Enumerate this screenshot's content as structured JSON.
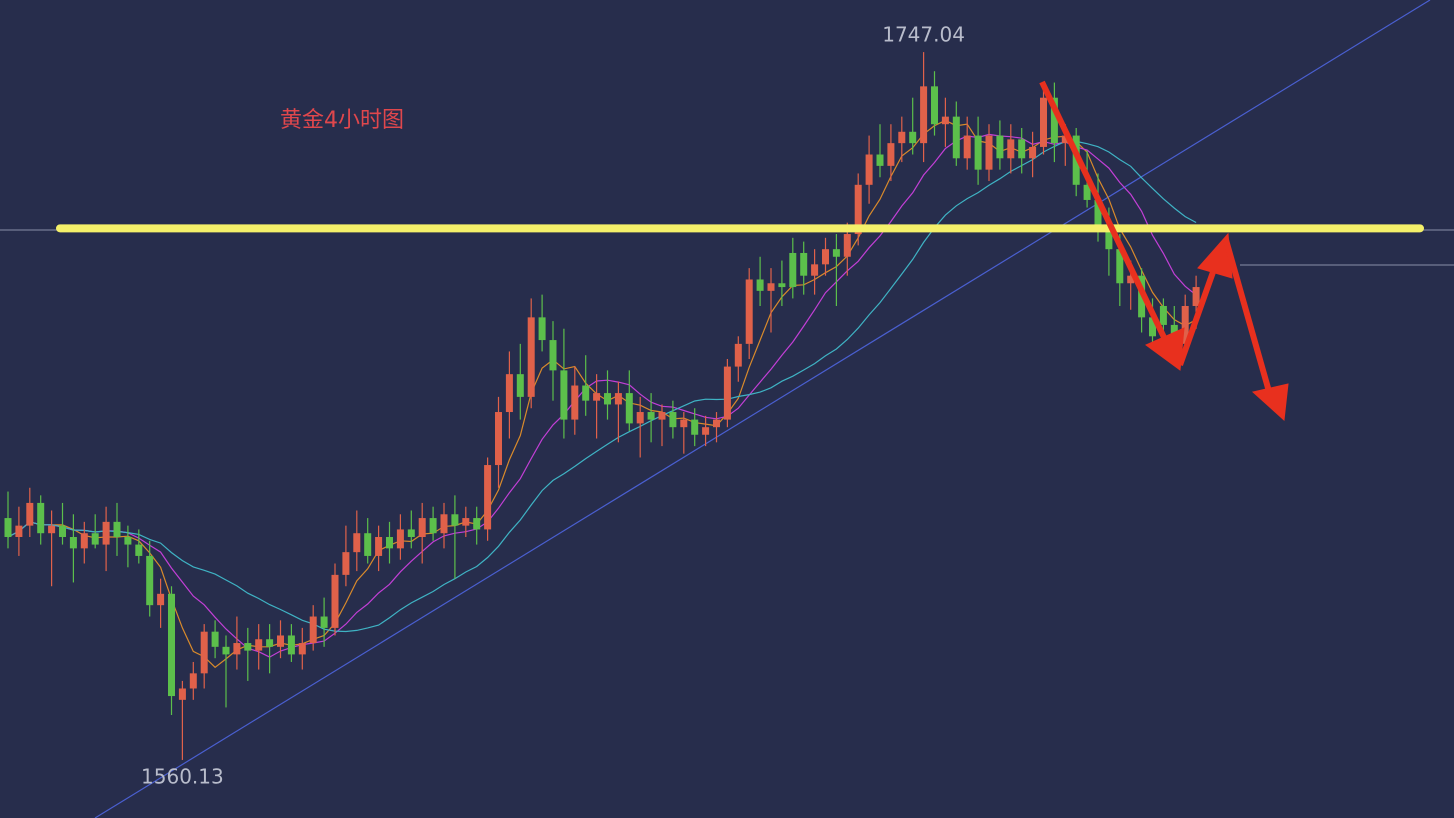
{
  "chart_data": {
    "type": "candlestick",
    "title": "黄金4小时图",
    "ylim": [
      1544.8,
      1760.8
    ],
    "up_color": "#e0614a",
    "down_color": "#5cbf4b",
    "hline": {
      "value": 1700.5,
      "color": "#f4f06a"
    },
    "moving_averages": [
      {
        "period": 5,
        "color": "#d98a2b"
      },
      {
        "period": 10,
        "color": "#c23fd6"
      },
      {
        "period": 20,
        "color": "#3fb3c4"
      }
    ],
    "high_index": 84,
    "low_index": 16,
    "candles": [
      [
        1624,
        1631,
        1616,
        1619
      ],
      [
        1619,
        1627,
        1614,
        1622
      ],
      [
        1622,
        1632,
        1619,
        1628
      ],
      [
        1628,
        1630,
        1617,
        1620
      ],
      [
        1620,
        1626,
        1606,
        1622
      ],
      [
        1622,
        1628,
        1617,
        1619
      ],
      [
        1619,
        1625,
        1607,
        1616
      ],
      [
        1616,
        1623,
        1612,
        1620
      ],
      [
        1620,
        1625,
        1616,
        1617
      ],
      [
        1617,
        1627,
        1610,
        1623
      ],
      [
        1623,
        1628,
        1614,
        1619
      ],
      [
        1619,
        1622,
        1611,
        1617
      ],
      [
        1617,
        1621,
        1612,
        1614
      ],
      [
        1614,
        1618,
        1598,
        1601
      ],
      [
        1601,
        1608,
        1595,
        1604
      ],
      [
        1604,
        1606,
        1572,
        1577
      ],
      [
        1576,
        1581,
        1560.13,
        1579
      ],
      [
        1579,
        1586,
        1576,
        1583
      ],
      [
        1583,
        1596,
        1579,
        1594
      ],
      [
        1594,
        1597,
        1587,
        1590
      ],
      [
        1590,
        1593,
        1574,
        1588
      ],
      [
        1588,
        1598,
        1584,
        1591
      ],
      [
        1591,
        1595,
        1581,
        1589
      ],
      [
        1589,
        1596,
        1584,
        1592
      ],
      [
        1592,
        1596,
        1583,
        1590
      ],
      [
        1590,
        1597,
        1587,
        1593
      ],
      [
        1593,
        1596,
        1586,
        1588
      ],
      [
        1588,
        1595,
        1584,
        1591
      ],
      [
        1591,
        1601,
        1589,
        1598
      ],
      [
        1598,
        1603,
        1590,
        1595
      ],
      [
        1595,
        1612,
        1593,
        1609
      ],
      [
        1609,
        1622,
        1606,
        1615
      ],
      [
        1615,
        1626,
        1610,
        1620
      ],
      [
        1620,
        1624,
        1612,
        1614
      ],
      [
        1614,
        1622,
        1610,
        1619
      ],
      [
        1619,
        1623,
        1612,
        1616
      ],
      [
        1616,
        1625,
        1613,
        1621
      ],
      [
        1621,
        1626,
        1616,
        1619
      ],
      [
        1619,
        1628,
        1612,
        1624
      ],
      [
        1624,
        1627,
        1618,
        1620
      ],
      [
        1620,
        1628,
        1616,
        1625
      ],
      [
        1625,
        1630,
        1608,
        1622
      ],
      [
        1622,
        1627,
        1619,
        1624
      ],
      [
        1624,
        1627,
        1617,
        1621
      ],
      [
        1621,
        1640,
        1618,
        1638
      ],
      [
        1638,
        1656,
        1632,
        1652
      ],
      [
        1652,
        1668,
        1645,
        1662
      ],
      [
        1662,
        1670,
        1650,
        1656
      ],
      [
        1656,
        1682,
        1653,
        1677
      ],
      [
        1677,
        1683,
        1668,
        1671
      ],
      [
        1671,
        1676,
        1655,
        1663
      ],
      [
        1663,
        1674,
        1645,
        1650
      ],
      [
        1650,
        1664,
        1646,
        1659
      ],
      [
        1659,
        1667,
        1651,
        1655
      ],
      [
        1655,
        1662,
        1645,
        1657
      ],
      [
        1657,
        1663,
        1650,
        1654
      ],
      [
        1654,
        1660,
        1644,
        1657
      ],
      [
        1657,
        1663,
        1647,
        1649
      ],
      [
        1649,
        1656,
        1640,
        1652
      ],
      [
        1652,
        1657,
        1644,
        1650
      ],
      [
        1650,
        1654,
        1643,
        1652
      ],
      [
        1652,
        1655,
        1645,
        1648
      ],
      [
        1648,
        1652,
        1641,
        1650
      ],
      [
        1650,
        1653,
        1643,
        1646
      ],
      [
        1646,
        1651,
        1643,
        1648
      ],
      [
        1648,
        1652,
        1644,
        1650
      ],
      [
        1650,
        1666,
        1648,
        1664
      ],
      [
        1664,
        1672,
        1660,
        1670
      ],
      [
        1670,
        1690,
        1666,
        1687
      ],
      [
        1687,
        1693,
        1680,
        1684
      ],
      [
        1684,
        1690,
        1673,
        1686
      ],
      [
        1686,
        1692,
        1680,
        1685
      ],
      [
        1694,
        1698,
        1682,
        1685
      ],
      [
        1694,
        1697,
        1683,
        1688
      ],
      [
        1688,
        1695,
        1683,
        1691
      ],
      [
        1691,
        1698,
        1688,
        1695
      ],
      [
        1695,
        1699,
        1680,
        1693
      ],
      [
        1693,
        1702,
        1688,
        1699
      ],
      [
        1699,
        1715,
        1696,
        1712
      ],
      [
        1712,
        1725,
        1707,
        1720
      ],
      [
        1720,
        1728,
        1714,
        1717
      ],
      [
        1717,
        1728,
        1713,
        1723
      ],
      [
        1723,
        1730,
        1718,
        1726
      ],
      [
        1726,
        1735,
        1720,
        1723
      ],
      [
        1723,
        1747.04,
        1718,
        1738
      ],
      [
        1738,
        1742,
        1725,
        1728
      ],
      [
        1728,
        1735,
        1722,
        1730
      ],
      [
        1730,
        1734,
        1717,
        1719
      ],
      [
        1719,
        1730,
        1716,
        1725
      ],
      [
        1725,
        1730,
        1712,
        1716
      ],
      [
        1716,
        1728,
        1713,
        1725
      ],
      [
        1725,
        1729,
        1716,
        1719
      ],
      [
        1719,
        1728,
        1715,
        1724
      ],
      [
        1724,
        1727,
        1715,
        1719
      ],
      [
        1719,
        1726,
        1714,
        1722
      ],
      [
        1722,
        1737,
        1720,
        1735
      ],
      [
        1735,
        1739,
        1718,
        1723
      ],
      [
        1723,
        1728,
        1717,
        1725
      ],
      [
        1725,
        1727,
        1709,
        1712
      ],
      [
        1712,
        1721,
        1706,
        1708
      ],
      [
        1708,
        1715,
        1697,
        1701
      ],
      [
        1701,
        1706,
        1688,
        1695
      ],
      [
        1695,
        1699,
        1680,
        1686
      ],
      [
        1686,
        1692,
        1679,
        1688
      ],
      [
        1688,
        1690,
        1673,
        1677
      ],
      [
        1677,
        1682,
        1669,
        1672
      ],
      [
        1680,
        1682,
        1672,
        1675
      ],
      [
        1675,
        1680,
        1667,
        1670
      ],
      [
        1670,
        1683,
        1668,
        1680
      ],
      [
        1680,
        1688,
        1674,
        1685
      ]
    ]
  }
}
